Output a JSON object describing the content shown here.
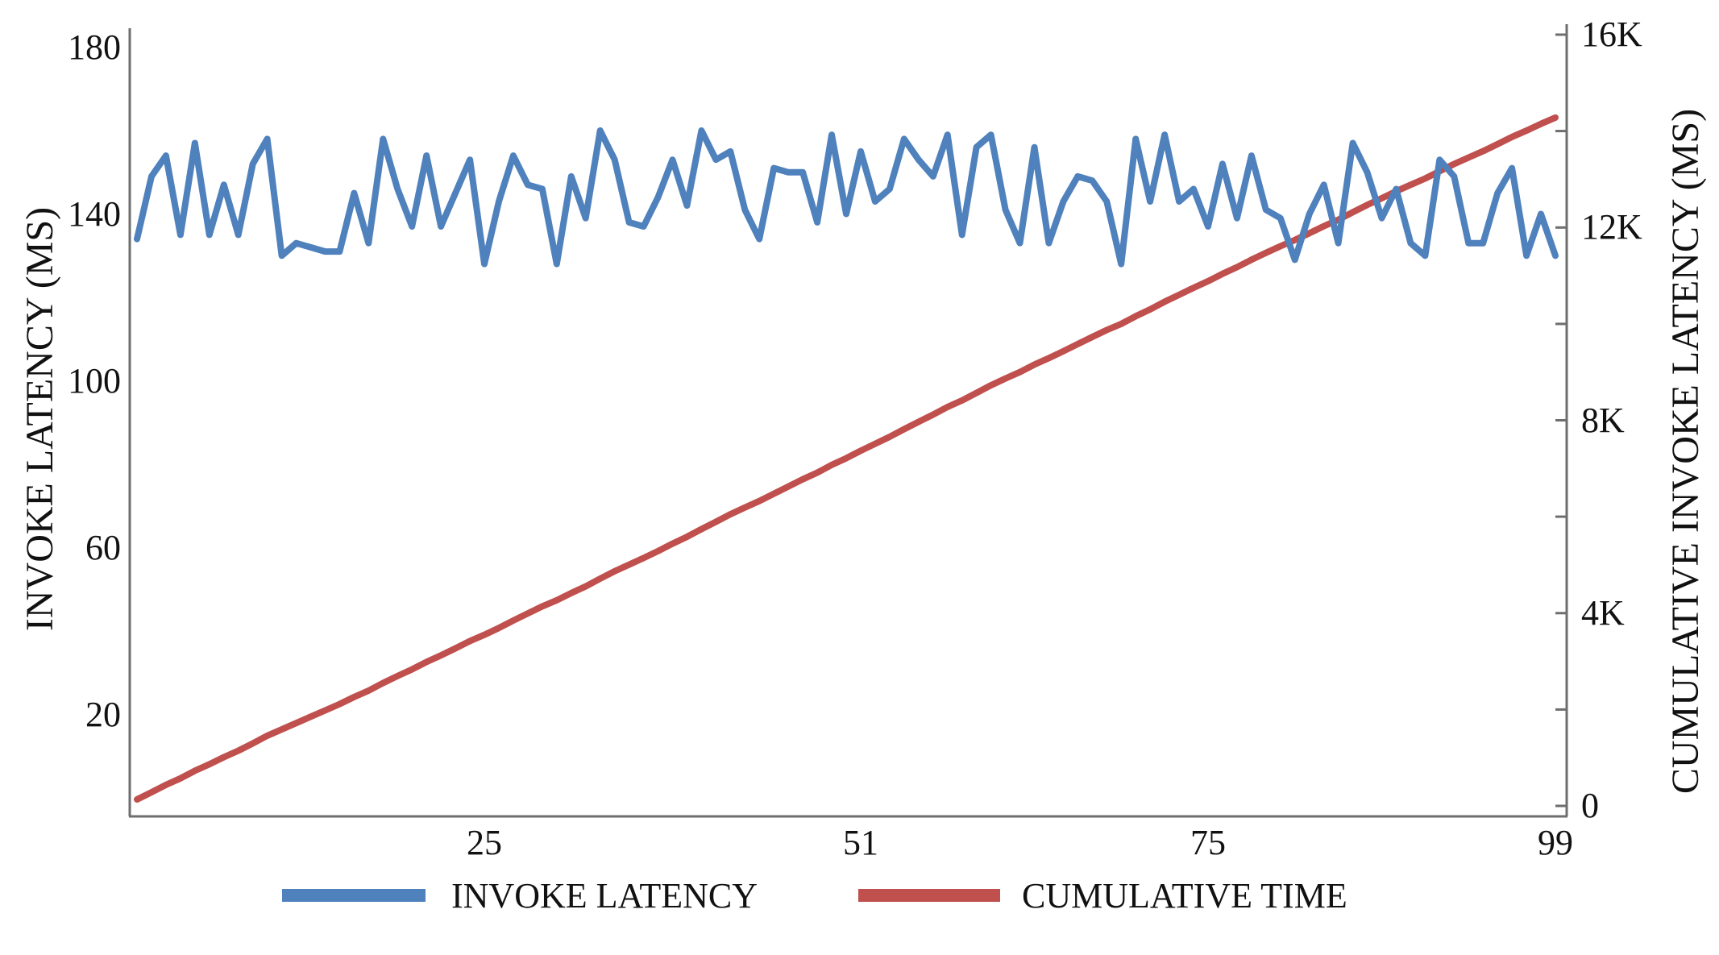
{
  "chart_data": {
    "type": "line",
    "title": "",
    "grid": false,
    "background": "#ffffff",
    "x_axis": {
      "range": [
        1,
        99
      ],
      "tick_labels": [
        "25",
        "51",
        "75",
        "99"
      ],
      "tick_positions": [
        25,
        51,
        75,
        99
      ]
    },
    "left_axis": {
      "label": "INVOKE LATENCY (MS)",
      "range": [
        0,
        180
      ],
      "tick_values": [
        20,
        60,
        100,
        140,
        180
      ],
      "tick_labels": [
        "20",
        "60",
        "100",
        "140",
        "180"
      ]
    },
    "right_axis": {
      "label": "CUMULATIVE INVOKE LATENCY (MS)",
      "range": [
        0,
        16000
      ],
      "tick_values": [
        0,
        4000,
        8000,
        12000,
        16000
      ],
      "tick_labels": [
        "0",
        "4K",
        "8K",
        "12K",
        "16K"
      ],
      "minor_tick_step": 2000
    },
    "series": [
      {
        "name": "INVOKE LATENCY",
        "axis": "left",
        "color": "#4F81BD",
        "x_start": 1,
        "values": [
          134,
          149,
          154,
          135,
          157,
          135,
          147,
          135,
          152,
          158,
          130,
          133,
          132,
          131,
          131,
          145,
          133,
          158,
          146,
          137,
          154,
          137,
          145,
          153,
          128,
          143,
          154,
          147,
          146,
          128,
          149,
          139,
          160,
          153,
          138,
          137,
          144,
          153,
          142,
          160,
          153,
          155,
          141,
          134,
          151,
          150,
          150,
          138,
          159,
          140,
          155,
          143,
          146,
          158,
          153,
          149,
          159,
          135,
          156,
          159,
          141,
          133,
          156,
          133,
          143,
          149,
          148,
          143,
          128,
          158,
          143,
          159,
          143,
          146,
          137,
          152,
          139,
          154,
          141,
          139,
          129,
          140,
          147,
          133,
          157,
          150,
          139,
          146,
          133,
          130,
          153,
          149,
          133,
          133,
          145,
          151,
          130,
          140,
          130
        ]
      },
      {
        "name": "CUMULATIVE TIME",
        "axis": "right",
        "color": "#C0504D",
        "derivation": "running cumulative sum of INVOKE LATENCY values",
        "end_value_approx": 14300
      }
    ],
    "legend": {
      "position": "bottom",
      "entries": [
        {
          "label": "INVOKE LATENCY",
          "color": "#4F81BD"
        },
        {
          "label": "CUMULATIVE TIME",
          "color": "#C0504D"
        }
      ]
    },
    "colors": {
      "axis_line": "#6e6e6e",
      "text": "#111111"
    }
  }
}
